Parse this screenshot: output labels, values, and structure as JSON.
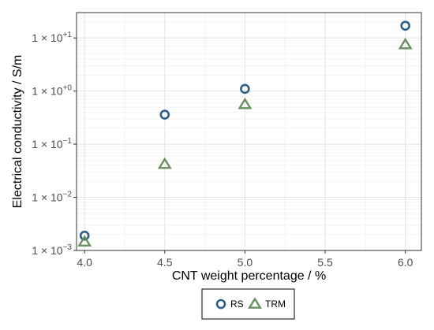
{
  "chart_data": {
    "type": "scatter",
    "xlabel": "CNT weight percentage / %",
    "ylabel": "Electrical conductivity / S/m",
    "xlim": [
      3.95,
      6.1
    ],
    "ylim": [
      0.001,
      30
    ],
    "yscale": "log",
    "grid": true,
    "legend_position": "bottom",
    "x_ticks": [
      4.0,
      4.5,
      5.0,
      5.5,
      6.0
    ],
    "x_tick_labels": [
      "4.0",
      "4.5",
      "5.0",
      "5.5",
      "6.0"
    ],
    "y_ticks": [
      {
        "value": 0.001,
        "mantissa": "1 × 10",
        "exponent": "−3"
      },
      {
        "value": 0.01,
        "mantissa": "1 × 10",
        "exponent": "−2"
      },
      {
        "value": 0.1,
        "mantissa": "1 × 10",
        "exponent": "−1"
      },
      {
        "value": 1,
        "mantissa": "1 × 10",
        "exponent": "+0"
      },
      {
        "value": 10,
        "mantissa": "1 × 10",
        "exponent": "+1"
      }
    ],
    "series": [
      {
        "name": "RS",
        "marker": "circle",
        "color": "#2f5f86",
        "x": [
          4.0,
          4.5,
          5.0,
          6.0
        ],
        "y": [
          0.0019,
          0.36,
          1.1,
          17
        ]
      },
      {
        "name": "TRM",
        "marker": "triangle",
        "color": "#6a8f5e",
        "x": [
          4.0,
          4.5,
          5.0,
          6.0
        ],
        "y": [
          0.00145,
          0.042,
          0.56,
          7.5
        ]
      }
    ]
  }
}
